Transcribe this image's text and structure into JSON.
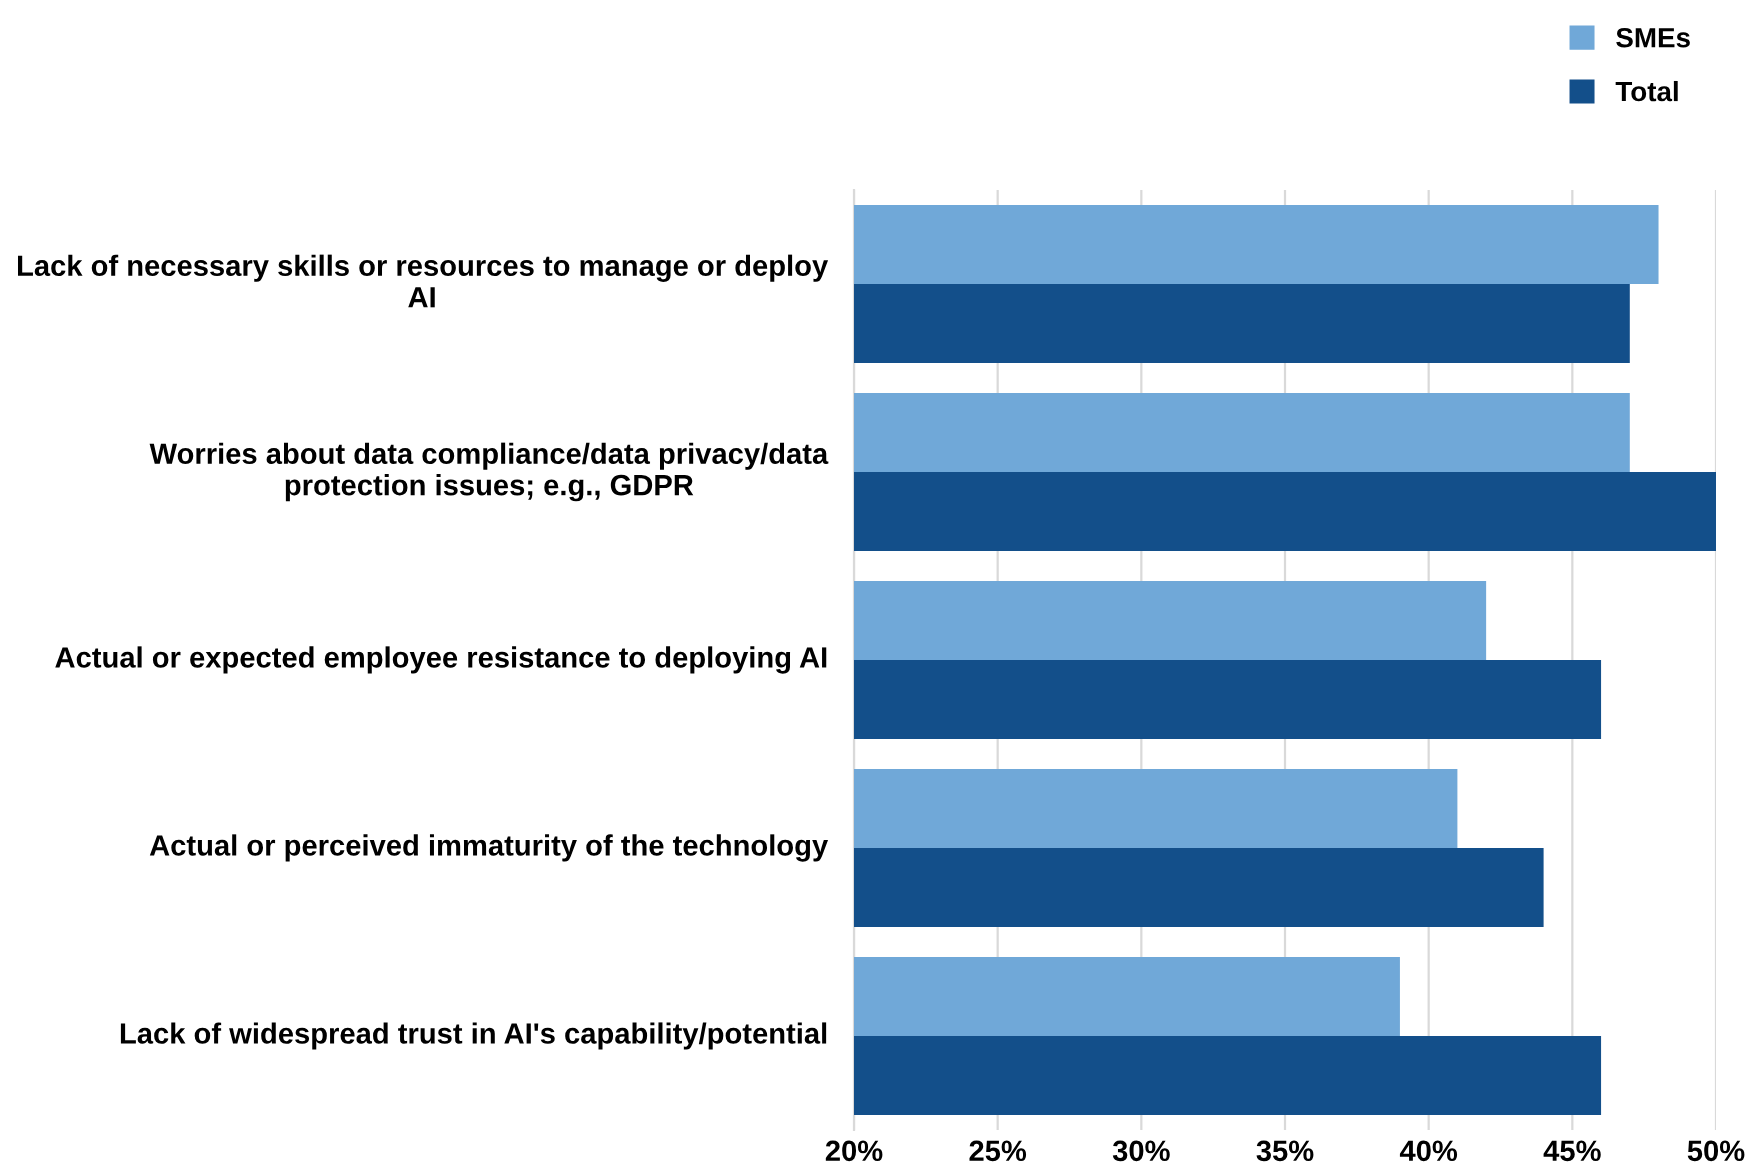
{
  "chart_data": {
    "type": "bar",
    "orientation": "horizontal",
    "categories": [
      "Lack of necessary skills or resources to manage or deploy AI",
      "Worries about data compliance/data privacy/data protection issues; e.g., GDPR",
      "Actual or expected employee resistance to deploying AI",
      "Actual or perceived immaturity of the technology",
      "Lack of widespread trust in AI's capability/potential"
    ],
    "series": [
      {
        "name": "SMEs",
        "color": "#70a8d8",
        "values": [
          48,
          47,
          42,
          41,
          39
        ]
      },
      {
        "name": "Total",
        "color": "#134f8a",
        "values": [
          47,
          50,
          46,
          44,
          46
        ]
      }
    ],
    "xlim": [
      20,
      50
    ],
    "xticks": [
      {
        "value": 20,
        "label": "20%"
      },
      {
        "value": 25,
        "label": "25%"
      },
      {
        "value": 30,
        "label": "30%"
      },
      {
        "value": 35,
        "label": "35%"
      },
      {
        "value": 40,
        "label": "40%"
      },
      {
        "value": 45,
        "label": "45%"
      },
      {
        "value": 50,
        "label": "50%"
      }
    ],
    "grid": "x",
    "legend": "top right"
  }
}
